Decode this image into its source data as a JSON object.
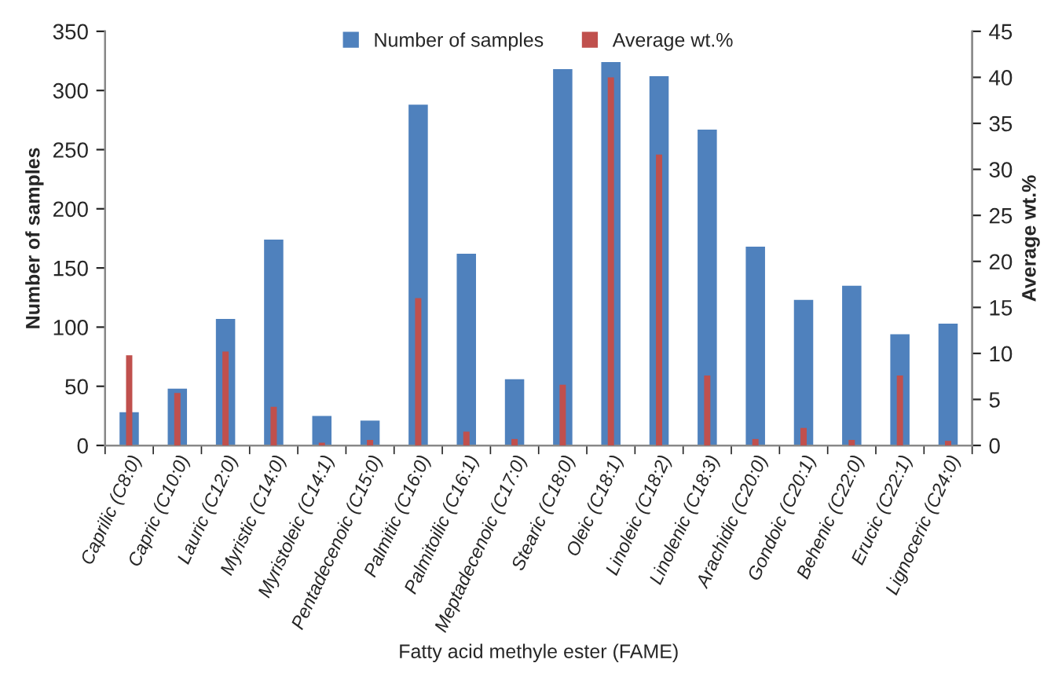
{
  "chart_data": {
    "type": "bar",
    "xlabel": "Fatty acid methyle ester (FAME)",
    "ylabel": "Number of samples",
    "y2label": "Average wt.%",
    "categories": [
      "Caprilic (C8:0)",
      "Capric (C10:0)",
      "Lauric (C12:0)",
      "Myristic (C14:0)",
      "Myristoleic (C14:1)",
      "Pentadecenoic (C15:0)",
      "Palmitic (C16:0)",
      "Palmitoilic (C16:1)",
      "Meptadecenoic (C17:0)",
      "Stearic (C18:0)",
      "Oleic (C18:1)",
      "Linoleic (C18:2)",
      "Linolenic (C18:3)",
      "Arachidic (C20:0)",
      "Gondoic (C20:1)",
      "Behenic (C22:0)",
      "Erucic (C22:1)",
      "Lignoceric (C24:0)"
    ],
    "series": [
      {
        "name": "Number of samples",
        "color": "#4f81bd",
        "values": [
          28,
          48,
          107,
          174,
          25,
          21,
          288,
          162,
          56,
          318,
          324,
          312,
          267,
          168,
          123,
          135,
          94,
          103
        ]
      },
      {
        "name": "Average wt.%",
        "color": "#c0504d",
        "axis": "y2",
        "values": [
          9.8,
          5.7,
          10.2,
          4.2,
          0.3,
          0.6,
          16,
          1.5,
          0.7,
          6.6,
          40,
          31.6,
          7.6,
          0.7,
          1.9,
          0.6,
          7.6,
          0.5
        ]
      }
    ],
    "ylim": [
      0,
      350
    ],
    "yticks": [
      0,
      50,
      100,
      150,
      200,
      250,
      300,
      350
    ],
    "y2lim": [
      0,
      45
    ],
    "y2ticks": [
      0,
      5,
      10,
      15,
      20,
      25,
      30,
      35,
      40,
      45
    ],
    "legend": "top",
    "grid": false
  }
}
